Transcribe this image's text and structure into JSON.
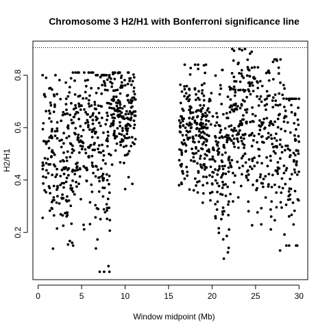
{
  "chart_data": {
    "type": "scatter",
    "title": "Chromosome 3 H2/H1 with Bonferroni significance line",
    "xlabel": "Window midpoint (Mb)",
    "ylabel": "H2/H1",
    "xlim": [
      -0.6,
      31.0
    ],
    "ylim": [
      0.02,
      0.93
    ],
    "x_ticks": [
      "0",
      "5",
      "10",
      "15",
      "20",
      "25",
      "30"
    ],
    "y_ticks": [
      "0.2",
      "0.4",
      "0.6",
      "0.8"
    ],
    "grid": false,
    "legend": "none",
    "marker_color": "#000000",
    "significance_line": {
      "value": 0.905,
      "style": "dotted",
      "color": "#000000"
    },
    "clusters": [
      {
        "x_range": [
          0.5,
          4.0
        ],
        "count": 180,
        "mean": 0.5,
        "sd": 0.15,
        "min": 0.05,
        "max": 0.8
      },
      {
        "x_range": [
          4.0,
          6.5
        ],
        "count": 130,
        "mean": 0.57,
        "sd": 0.14,
        "min": 0.15,
        "max": 0.81
      },
      {
        "x_range": [
          6.5,
          8.3
        ],
        "count": 110,
        "mean": 0.5,
        "sd": 0.2,
        "min": 0.05,
        "max": 0.8
      },
      {
        "x_range": [
          8.3,
          11.2
        ],
        "count": 180,
        "mean": 0.65,
        "sd": 0.1,
        "min": 0.24,
        "max": 0.81
      },
      {
        "x_range": [
          16.2,
          19.8
        ],
        "count": 230,
        "mean": 0.58,
        "sd": 0.11,
        "min": 0.13,
        "max": 0.84
      },
      {
        "x_range": [
          19.8,
          22.0
        ],
        "count": 120,
        "mean": 0.48,
        "sd": 0.17,
        "min": 0.1,
        "max": 0.82
      },
      {
        "x_range": [
          22.0,
          25.0
        ],
        "count": 180,
        "mean": 0.62,
        "sd": 0.15,
        "min": 0.08,
        "max": 0.9
      },
      {
        "x_range": [
          25.0,
          28.5
        ],
        "count": 160,
        "mean": 0.55,
        "sd": 0.16,
        "min": 0.07,
        "max": 0.86
      },
      {
        "x_range": [
          28.5,
          30.0
        ],
        "count": 70,
        "mean": 0.45,
        "sd": 0.18,
        "min": 0.15,
        "max": 0.71
      }
    ]
  }
}
